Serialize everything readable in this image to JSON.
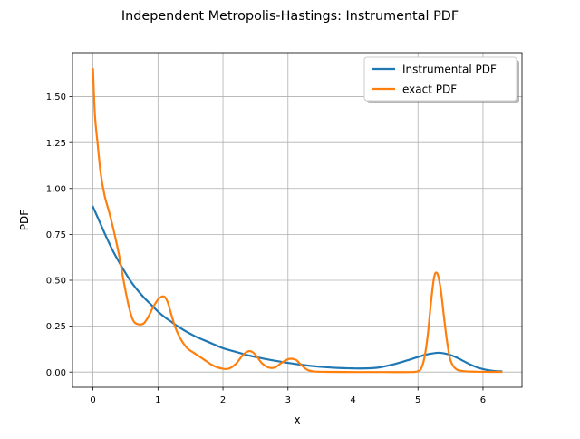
{
  "chart_data": {
    "type": "line",
    "title": "Independent Metropolis-Hastings: Instrumental PDF",
    "xlabel": "x",
    "ylabel": "PDF",
    "xlim": [
      -0.315,
      6.6
    ],
    "ylim": [
      -0.083,
      1.74
    ],
    "xticks": [
      0,
      1,
      2,
      3,
      4,
      5,
      6
    ],
    "xtick_labels": [
      "0",
      "1",
      "2",
      "3",
      "4",
      "5",
      "6"
    ],
    "yticks": [
      0.0,
      0.25,
      0.5,
      0.75,
      1.0,
      1.25,
      1.5
    ],
    "ytick_labels": [
      "0.00",
      "0.25",
      "0.50",
      "0.75",
      "1.00",
      "1.25",
      "1.50"
    ],
    "grid": true,
    "legend_position": "upper right",
    "series": [
      {
        "name": "Instrumental PDF",
        "color": "#1f77b4",
        "x": [
          0.0,
          0.1,
          0.2,
          0.3,
          0.4,
          0.5,
          0.6,
          0.7,
          0.8,
          0.9,
          1.0,
          1.1,
          1.2,
          1.3,
          1.4,
          1.5,
          1.6,
          1.8,
          2.0,
          2.2,
          2.4,
          2.6,
          2.8,
          3.0,
          3.2,
          3.4,
          3.6,
          3.8,
          4.0,
          4.2,
          4.4,
          4.6,
          4.8,
          5.0,
          5.1,
          5.2,
          5.3,
          5.4,
          5.5,
          5.6,
          5.7,
          5.8,
          5.9,
          6.0,
          6.1,
          6.2,
          6.283
        ],
        "y": [
          0.9,
          0.82,
          0.74,
          0.665,
          0.6,
          0.54,
          0.485,
          0.44,
          0.4,
          0.365,
          0.33,
          0.3,
          0.275,
          0.25,
          0.228,
          0.208,
          0.19,
          0.16,
          0.13,
          0.11,
          0.09,
          0.075,
          0.062,
          0.05,
          0.04,
          0.032,
          0.026,
          0.022,
          0.02,
          0.02,
          0.025,
          0.04,
          0.06,
          0.082,
          0.093,
          0.1,
          0.105,
          0.102,
          0.093,
          0.078,
          0.06,
          0.042,
          0.027,
          0.016,
          0.009,
          0.005,
          0.004
        ]
      },
      {
        "name": "exact PDF",
        "color": "#ff7f0e",
        "x": [
          0.0,
          0.03,
          0.07,
          0.12,
          0.18,
          0.25,
          0.32,
          0.4,
          0.47,
          0.55,
          0.62,
          0.7,
          0.78,
          0.85,
          0.92,
          1.0,
          1.05,
          1.1,
          1.15,
          1.2,
          1.27,
          1.35,
          1.45,
          1.55,
          1.7,
          1.85,
          2.0,
          2.1,
          2.2,
          2.3,
          2.38,
          2.45,
          2.52,
          2.6,
          2.7,
          2.8,
          2.9,
          3.0,
          3.07,
          3.13,
          3.2,
          3.3,
          3.4,
          3.6,
          4.0,
          4.5,
          4.9,
          5.0,
          5.05,
          5.1,
          5.15,
          5.2,
          5.25,
          5.3,
          5.35,
          5.4,
          5.45,
          5.5,
          5.58,
          5.7,
          5.9,
          6.1,
          6.283
        ],
        "y": [
          1.65,
          1.4,
          1.25,
          1.08,
          0.96,
          0.87,
          0.77,
          0.64,
          0.5,
          0.36,
          0.28,
          0.26,
          0.265,
          0.3,
          0.35,
          0.395,
          0.41,
          0.41,
          0.38,
          0.32,
          0.24,
          0.18,
          0.13,
          0.105,
          0.07,
          0.035,
          0.018,
          0.02,
          0.045,
          0.09,
          0.112,
          0.11,
          0.085,
          0.048,
          0.025,
          0.025,
          0.05,
          0.07,
          0.072,
          0.065,
          0.04,
          0.012,
          0.003,
          0.001,
          0.0,
          0.0,
          0.0,
          0.005,
          0.02,
          0.08,
          0.2,
          0.38,
          0.52,
          0.535,
          0.45,
          0.3,
          0.16,
          0.065,
          0.018,
          0.005,
          0.002,
          0.001,
          0.001
        ]
      }
    ]
  }
}
